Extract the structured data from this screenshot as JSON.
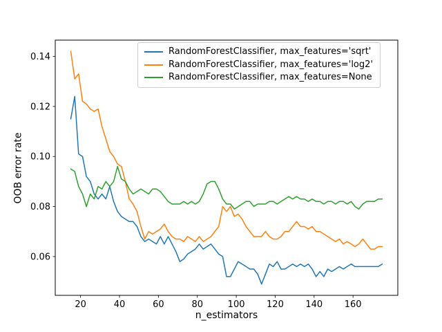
{
  "figure": {
    "background": "#ffffff"
  },
  "chart_data": {
    "type": "line",
    "title": "",
    "xlabel": "n_estimators",
    "ylabel": "OOB error rate",
    "xlim": [
      7,
      183
    ],
    "ylim": [
      0.0445,
      0.1465
    ],
    "xticks": [
      20,
      40,
      60,
      80,
      100,
      120,
      140,
      160
    ],
    "yticks": [
      0.06,
      0.08,
      0.1,
      0.12,
      0.14
    ],
    "grid": false,
    "legend_position": "upper center inside axes",
    "x": [
      15,
      17,
      19,
      21,
      23,
      25,
      27,
      29,
      31,
      33,
      35,
      37,
      39,
      41,
      43,
      45,
      47,
      49,
      51,
      53,
      55,
      57,
      59,
      61,
      63,
      65,
      67,
      69,
      71,
      73,
      75,
      77,
      79,
      81,
      83,
      85,
      87,
      89,
      91,
      93,
      95,
      97,
      99,
      101,
      103,
      105,
      107,
      109,
      111,
      113,
      115,
      117,
      119,
      121,
      123,
      125,
      127,
      129,
      131,
      133,
      135,
      137,
      139,
      141,
      143,
      145,
      147,
      149,
      151,
      153,
      155,
      157,
      159,
      161,
      163,
      165,
      167,
      169,
      171,
      173,
      175
    ],
    "series": [
      {
        "name": "RandomForestClassifier, max_features='sqrt'",
        "color": "#1f77b4",
        "values": [
          0.115,
          0.124,
          0.101,
          0.1,
          0.092,
          0.09,
          0.085,
          0.083,
          0.085,
          0.083,
          0.088,
          0.082,
          0.078,
          0.076,
          0.075,
          0.074,
          0.074,
          0.072,
          0.068,
          0.066,
          0.067,
          0.066,
          0.065,
          0.068,
          0.065,
          0.068,
          0.065,
          0.062,
          0.058,
          0.059,
          0.061,
          0.062,
          0.063,
          0.065,
          0.063,
          0.064,
          0.065,
          0.063,
          0.061,
          0.06,
          0.052,
          0.052,
          0.055,
          0.058,
          0.057,
          0.056,
          0.055,
          0.055,
          0.053,
          0.049,
          0.053,
          0.057,
          0.056,
          0.058,
          0.055,
          0.055,
          0.056,
          0.057,
          0.056,
          0.057,
          0.056,
          0.057,
          0.055,
          0.052,
          0.054,
          0.052,
          0.055,
          0.054,
          0.055,
          0.056,
          0.055,
          0.056,
          0.057,
          0.056,
          0.056,
          0.056,
          0.056,
          0.056,
          0.056,
          0.056,
          0.057
        ]
      },
      {
        "name": "RandomForestClassifier, max_features='log2'",
        "color": "#ff7f0e",
        "values": [
          0.142,
          0.131,
          0.133,
          0.122,
          0.121,
          0.119,
          0.118,
          0.119,
          0.112,
          0.107,
          0.102,
          0.1,
          0.097,
          0.096,
          0.09,
          0.083,
          0.081,
          0.078,
          0.072,
          0.067,
          0.07,
          0.069,
          0.07,
          0.071,
          0.073,
          0.07,
          0.068,
          0.067,
          0.067,
          0.066,
          0.068,
          0.067,
          0.066,
          0.068,
          0.066,
          0.067,
          0.068,
          0.07,
          0.072,
          0.08,
          0.078,
          0.08,
          0.076,
          0.077,
          0.075,
          0.072,
          0.07,
          0.068,
          0.068,
          0.068,
          0.07,
          0.068,
          0.067,
          0.067,
          0.068,
          0.07,
          0.07,
          0.072,
          0.074,
          0.072,
          0.072,
          0.071,
          0.072,
          0.07,
          0.07,
          0.069,
          0.068,
          0.067,
          0.066,
          0.067,
          0.065,
          0.066,
          0.065,
          0.064,
          0.065,
          0.067,
          0.065,
          0.063,
          0.063,
          0.064,
          0.064
        ]
      },
      {
        "name": "RandomForestClassifier, max_features=None",
        "color": "#2ca02c",
        "values": [
          0.095,
          0.094,
          0.088,
          0.085,
          0.08,
          0.085,
          0.083,
          0.088,
          0.087,
          0.09,
          0.088,
          0.09,
          0.096,
          0.091,
          0.09,
          0.087,
          0.085,
          0.086,
          0.087,
          0.086,
          0.085,
          0.087,
          0.087,
          0.086,
          0.084,
          0.082,
          0.081,
          0.081,
          0.081,
          0.082,
          0.081,
          0.082,
          0.081,
          0.082,
          0.085,
          0.089,
          0.09,
          0.09,
          0.087,
          0.083,
          0.081,
          0.081,
          0.079,
          0.08,
          0.081,
          0.082,
          0.082,
          0.08,
          0.081,
          0.081,
          0.081,
          0.082,
          0.082,
          0.081,
          0.082,
          0.083,
          0.084,
          0.083,
          0.084,
          0.083,
          0.083,
          0.082,
          0.083,
          0.082,
          0.082,
          0.081,
          0.082,
          0.082,
          0.081,
          0.082,
          0.082,
          0.081,
          0.082,
          0.08,
          0.079,
          0.081,
          0.082,
          0.082,
          0.082,
          0.083,
          0.083
        ]
      }
    ]
  }
}
